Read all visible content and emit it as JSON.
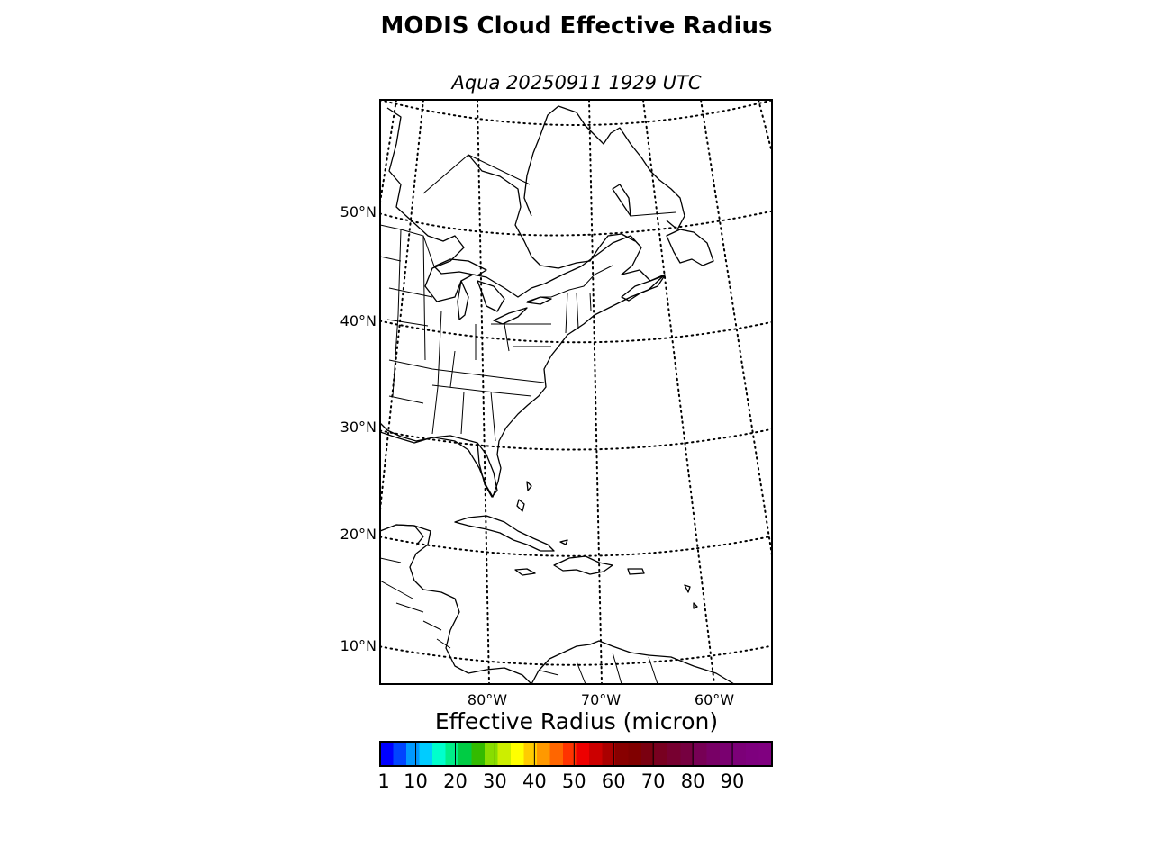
{
  "figure": {
    "title": "MODIS Cloud Effective Radius",
    "subtitle": "Aqua 20250911 1929 UTC"
  },
  "map": {
    "projection": "lambert-conformal",
    "region": "Eastern North America and Caribbean",
    "parallels": [
      "10°N",
      "20°N",
      "30°N",
      "40°N",
      "50°N"
    ],
    "meridians": [
      "80°W",
      "70°W",
      "60°W"
    ],
    "gridline_style": "dotted",
    "data_overlay": "none visible"
  },
  "colorbar": {
    "label": "Effective Radius (micron)",
    "ticks": [
      "1",
      "10",
      "20",
      "30",
      "40",
      "50",
      "60",
      "70",
      "80",
      "90"
    ],
    "tick_values": [
      1,
      10,
      20,
      30,
      40,
      50,
      60,
      70,
      80,
      90
    ],
    "range": [
      1,
      100
    ],
    "colors": [
      "#0000ff",
      "#0044ff",
      "#0099ff",
      "#00ccff",
      "#00ffcc",
      "#00ee88",
      "#00cc44",
      "#33bb00",
      "#88dd00",
      "#ccee00",
      "#ffff00",
      "#ffcc00",
      "#ff9900",
      "#ff6600",
      "#ff3300",
      "#ee0000",
      "#cc0000",
      "#aa0000",
      "#880000",
      "#800000",
      "#7a0010",
      "#780020",
      "#770030",
      "#760040",
      "#770055",
      "#780066",
      "#7a0070",
      "#7c0078",
      "#7e007e",
      "#800080"
    ]
  }
}
